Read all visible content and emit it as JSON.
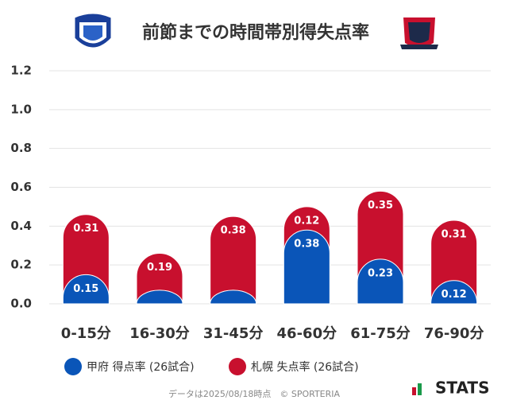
{
  "chart_data": {
    "type": "bar",
    "stacked": true,
    "title": "前節までの時間帯別得失点率",
    "categories": [
      "0-15分",
      "16-30分",
      "31-45分",
      "46-60分",
      "61-75分",
      "76-90分"
    ],
    "series": [
      {
        "name": "甲府 得点率 (26試合)",
        "color": "#0a55b8",
        "values": [
          0.15,
          0.07,
          0.07,
          0.38,
          0.23,
          0.12
        ],
        "value_labels": [
          "0.15",
          null,
          null,
          "0.38",
          "0.23",
          "0.12"
        ]
      },
      {
        "name": "札幌 失点率 (26試合)",
        "color": "#c8102e",
        "values": [
          0.31,
          0.19,
          0.38,
          0.12,
          0.35,
          0.31
        ],
        "value_labels": [
          "0.31",
          "0.19",
          "0.38",
          "0.12",
          "0.35",
          "0.31"
        ]
      }
    ],
    "ylim": [
      0,
      1.2
    ],
    "yticks": [
      {
        "value": 0,
        "label": "0.0"
      },
      0.2,
      0.4,
      0.6,
      0.8,
      {
        "value": 1,
        "label": "1.0"
      },
      1.2
    ],
    "grid": true,
    "legend": "bottom",
    "source": "データは2025/08/18時点　© SPORTERIA",
    "brand": "STATS"
  }
}
